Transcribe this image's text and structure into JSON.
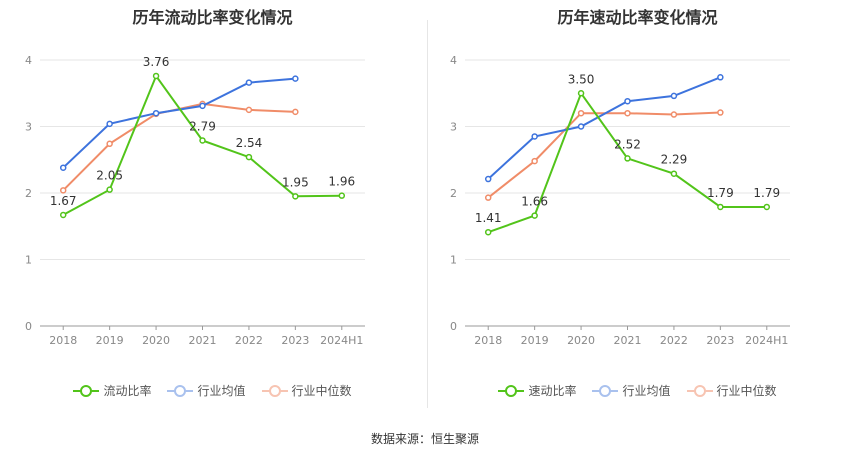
{
  "colors": {
    "primary": "#52c41a",
    "avg": "#3d73dd",
    "median": "#f08c68",
    "grid": "#e6e6e6",
    "axis_text": "#888888"
  },
  "source": "数据来源：恒生聚源",
  "chart_data": [
    {
      "type": "line",
      "title": "历年流动比率变化情况",
      "categories": [
        "2018",
        "2019",
        "2020",
        "2021",
        "2022",
        "2023",
        "2024H1"
      ],
      "ylim": [
        0,
        4
      ],
      "yticks": [
        0,
        1,
        2,
        3,
        4
      ],
      "grid": true,
      "legend_position": "bottom",
      "series": [
        {
          "name": "流动比率",
          "color_key": "primary",
          "values": [
            1.67,
            2.05,
            3.76,
            2.79,
            2.54,
            1.95,
            1.96
          ],
          "labels": [
            "1.67",
            "2.05",
            "3.76",
            "2.79",
            "2.54",
            "1.95",
            "1.96"
          ]
        },
        {
          "name": "行业均值",
          "color_key": "avg",
          "values": [
            2.38,
            3.04,
            3.2,
            3.31,
            3.66,
            3.72,
            null
          ]
        },
        {
          "name": "行业中位数",
          "color_key": "median",
          "values": [
            2.04,
            2.74,
            3.19,
            3.34,
            3.25,
            3.22,
            null
          ]
        }
      ]
    },
    {
      "type": "line",
      "title": "历年速动比率变化情况",
      "categories": [
        "2018",
        "2019",
        "2020",
        "2021",
        "2022",
        "2023",
        "2024H1"
      ],
      "ylim": [
        0,
        4
      ],
      "yticks": [
        0,
        1,
        2,
        3,
        4
      ],
      "grid": true,
      "legend_position": "bottom",
      "series": [
        {
          "name": "速动比率",
          "color_key": "primary",
          "values": [
            1.41,
            1.66,
            3.5,
            2.52,
            2.29,
            1.79,
            1.79
          ],
          "labels": [
            "1.41",
            "1.66",
            "3.50",
            "2.52",
            "2.29",
            "1.79",
            "1.79"
          ]
        },
        {
          "name": "行业均值",
          "color_key": "avg",
          "values": [
            2.21,
            2.85,
            3.0,
            3.38,
            3.46,
            3.74,
            null
          ]
        },
        {
          "name": "行业中位数",
          "color_key": "median",
          "values": [
            1.93,
            2.48,
            3.2,
            3.2,
            3.18,
            3.21,
            null
          ]
        }
      ]
    }
  ]
}
